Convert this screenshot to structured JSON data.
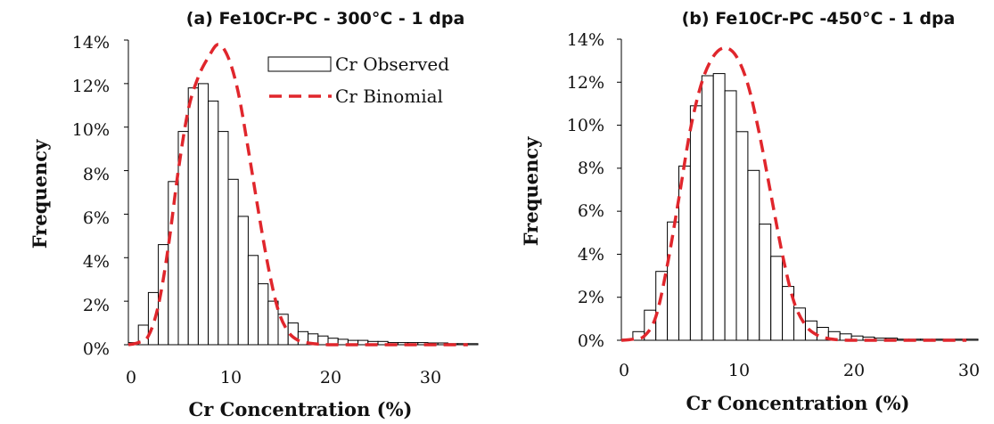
{
  "legend": {
    "observed": "Cr Observed",
    "binomial": "Cr Binomial"
  },
  "colors": {
    "bar_fill": "#ffffff",
    "bar_stroke": "#000000",
    "binomial": "#e0262c",
    "axis": "#000000"
  },
  "chart_data": [
    {
      "type": "bar",
      "title": "(a) Fe10Cr-PC - 300°C - 1 dpa",
      "xlabel": "Cr Concentration (%)",
      "ylabel": "Frequency",
      "xlim": [
        0,
        35
      ],
      "ylim": [
        0,
        14
      ],
      "xticks": [
        "0",
        "10",
        "20",
        "30"
      ],
      "yticks": [
        "0%",
        "2%",
        "4%",
        "6%",
        "8%",
        "10%",
        "12%",
        "14%"
      ],
      "bin_width": 1,
      "legend_position": "top-right",
      "series": [
        {
          "name": "Cr Observed",
          "style": "histogram",
          "x": [
            1,
            2,
            3,
            4,
            5,
            6,
            7,
            8,
            9,
            10,
            11,
            12,
            13,
            14,
            15,
            16,
            17,
            18,
            19,
            20,
            21,
            22,
            23,
            24,
            25,
            26,
            27,
            28,
            29,
            30,
            31,
            32,
            33,
            34,
            35
          ],
          "values": [
            0.1,
            0.9,
            2.4,
            4.6,
            7.5,
            9.8,
            11.8,
            12.0,
            11.2,
            9.8,
            7.6,
            5.9,
            4.1,
            2.8,
            2.0,
            1.4,
            1.0,
            0.6,
            0.5,
            0.4,
            0.3,
            0.25,
            0.2,
            0.2,
            0.15,
            0.15,
            0.1,
            0.1,
            0.1,
            0.1,
            0.08,
            0.08,
            0.05,
            0.05,
            0.05
          ]
        },
        {
          "name": "Cr Binomial",
          "style": "dashed-line",
          "x": [
            0,
            1,
            2,
            3,
            4,
            5,
            6,
            7,
            8,
            9,
            10,
            11,
            12,
            13,
            14,
            15,
            16,
            17,
            18,
            19,
            20,
            22,
            24,
            26,
            28,
            30,
            32,
            34
          ],
          "values": [
            0,
            0.1,
            0.4,
            1.8,
            4.5,
            8.0,
            10.8,
            12.3,
            13.2,
            13.8,
            13.2,
            11.6,
            9.0,
            6.2,
            3.6,
            1.6,
            0.6,
            0.2,
            0.08,
            0.03,
            0,
            0,
            0,
            0,
            0,
            0,
            0,
            0
          ]
        }
      ]
    },
    {
      "type": "bar",
      "title": "(b) Fe10Cr-PC -450°C - 1 dpa",
      "xlabel": "Cr Concentration (%)",
      "ylabel": "Frequency",
      "xlim": [
        0,
        31
      ],
      "ylim": [
        0,
        14
      ],
      "xticks": [
        "0",
        "10",
        "20",
        "30"
      ],
      "yticks": [
        "0%",
        "2%",
        "4%",
        "6%",
        "8%",
        "10%",
        "12%",
        "14%"
      ],
      "bin_width": 1,
      "series": [
        {
          "name": "Cr Observed",
          "style": "histogram",
          "x": [
            1,
            2,
            3,
            4,
            5,
            6,
            7,
            8,
            9,
            10,
            11,
            12,
            13,
            14,
            15,
            16,
            17,
            18,
            19,
            20,
            21,
            22,
            23,
            24,
            25,
            26,
            27,
            28,
            29,
            30,
            31
          ],
          "values": [
            0.05,
            0.4,
            1.4,
            3.2,
            5.5,
            8.1,
            10.9,
            12.3,
            12.4,
            11.6,
            9.7,
            7.9,
            5.4,
            3.9,
            2.5,
            1.5,
            0.9,
            0.6,
            0.4,
            0.3,
            0.2,
            0.15,
            0.1,
            0.1,
            0.05,
            0.05,
            0.05,
            0.05,
            0.05,
            0.05,
            0.05
          ]
        },
        {
          "name": "Cr Binomial",
          "style": "dashed-line",
          "x": [
            0,
            1,
            2,
            3,
            4,
            5,
            6,
            7,
            8,
            9,
            10,
            11,
            12,
            13,
            14,
            15,
            16,
            17,
            18,
            19,
            20,
            22,
            24,
            26,
            28,
            30
          ],
          "values": [
            0,
            0.05,
            0.2,
            1.1,
            3.5,
            6.6,
            9.8,
            12.0,
            13.2,
            13.6,
            13.2,
            11.9,
            9.6,
            6.8,
            4.0,
            1.8,
            0.7,
            0.25,
            0.08,
            0.02,
            0,
            0,
            0,
            0,
            0,
            0
          ]
        }
      ]
    }
  ]
}
